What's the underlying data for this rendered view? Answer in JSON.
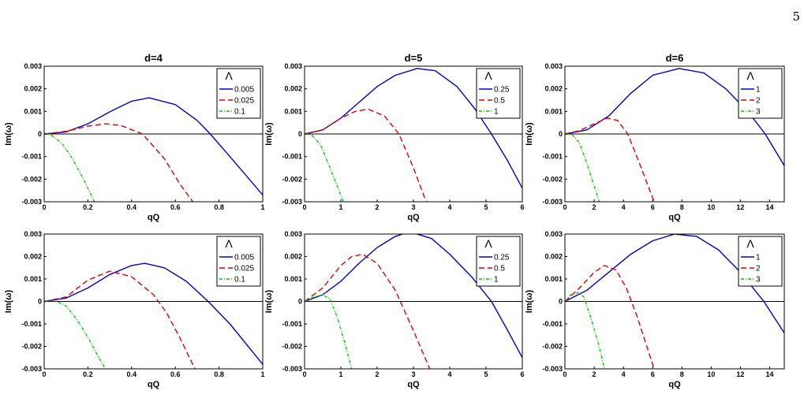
{
  "page_number": "5",
  "chart_data": [
    {
      "type": "line",
      "title": "d=4",
      "xlabel": "qQ",
      "ylabel": "Im(ω)",
      "xlim": [
        0,
        1
      ],
      "ylim": [
        -0.003,
        0.003
      ],
      "xticks": [
        "0",
        "0.2",
        "0.4",
        "0.6",
        "0.8",
        "1"
      ],
      "yticks": [
        "-0.003",
        "-0.002",
        "-0.001",
        "0",
        "0.001",
        "0.002",
        "0.003"
      ],
      "legend": {
        "title": "Λ",
        "placement": "top-right",
        "entries": [
          "0.005",
          "0.025",
          "0.1"
        ]
      },
      "series": [
        {
          "name": "0.005",
          "color": "#0000cc",
          "style": "solid",
          "x": [
            0,
            0.1,
            0.2,
            0.3,
            0.4,
            0.48,
            0.6,
            0.7,
            0.76,
            0.85,
            1.0
          ],
          "y": [
            0,
            9e-05,
            0.00045,
            0.00098,
            0.00145,
            0.0016,
            0.0013,
            0.0006,
            0,
            -0.001,
            -0.0027
          ]
        },
        {
          "name": "0.025",
          "color": "#dd0000",
          "style": "dashed",
          "x": [
            0,
            0.1,
            0.2,
            0.28,
            0.35,
            0.45,
            0.55,
            0.62,
            0.68
          ],
          "y": [
            0,
            0.00012,
            0.00035,
            0.00045,
            0.00038,
            0,
            -0.0011,
            -0.0022,
            -0.003
          ]
        },
        {
          "name": "0.1",
          "color": "#00cc00",
          "style": "dashdot",
          "x": [
            0,
            0.03,
            0.08,
            0.13,
            0.18,
            0.23
          ],
          "y": [
            0,
            -3e-05,
            -0.0004,
            -0.0011,
            -0.002,
            -0.003
          ]
        }
      ]
    },
    {
      "type": "line",
      "title": "d=5",
      "xlabel": "qQ",
      "ylabel": "Im(ω)",
      "xlim": [
        0,
        6
      ],
      "ylim": [
        -0.003,
        0.003
      ],
      "xticks": [
        "0",
        "1",
        "2",
        "3",
        "4",
        "5",
        "6"
      ],
      "yticks": [
        "-0.003",
        "-0.002",
        "-0.001",
        "0",
        "0.001",
        "0.002",
        "0.003"
      ],
      "legend": {
        "title": "Λ",
        "placement": "top-right",
        "entries": [
          "0.25",
          "0.5",
          "1"
        ]
      },
      "series": [
        {
          "name": "0.25",
          "color": "#0000cc",
          "style": "solid",
          "x": [
            0,
            0.5,
            1.0,
            1.5,
            2.0,
            2.5,
            3.1,
            3.6,
            4.2,
            4.7,
            5.15,
            5.6,
            6.0
          ],
          "y": [
            0,
            0.00018,
            0.0007,
            0.0014,
            0.0021,
            0.0026,
            0.0029,
            0.0028,
            0.0021,
            0.0011,
            0,
            -0.0012,
            -0.0024
          ]
        },
        {
          "name": "0.5",
          "color": "#dd0000",
          "style": "dashed",
          "x": [
            0,
            0.5,
            1.0,
            1.4,
            1.75,
            2.2,
            2.6,
            3.0,
            3.35
          ],
          "y": [
            0,
            0.00018,
            0.0007,
            0.001,
            0.0011,
            0.0008,
            0,
            -0.0015,
            -0.003
          ]
        },
        {
          "name": "1",
          "color": "#00cc00",
          "style": "dashdot",
          "x": [
            0,
            0.2,
            0.45,
            0.7,
            0.9,
            1.07
          ],
          "y": [
            0,
            -5e-05,
            -0.0005,
            -0.0015,
            -0.0023,
            -0.003
          ]
        }
      ]
    },
    {
      "type": "line",
      "title": "d=6",
      "xlabel": "qQ",
      "ylabel": "Im(ω)",
      "xlim": [
        0,
        15
      ],
      "ylim": [
        -0.003,
        0.003
      ],
      "xticks": [
        "0",
        "2",
        "4",
        "6",
        "8",
        "10",
        "12",
        "14"
      ],
      "yticks": [
        "-0.003",
        "-0.002",
        "-0.001",
        "0",
        "0.001",
        "0.002",
        "0.003"
      ],
      "legend": {
        "title": "Λ",
        "placement": "top-right",
        "entries": [
          "1",
          "2",
          "3"
        ]
      },
      "series": [
        {
          "name": "1",
          "color": "#0000cc",
          "style": "solid",
          "x": [
            0,
            1.5,
            3,
            4.5,
            6,
            7.8,
            9.5,
            11,
            12.5,
            13.7,
            15
          ],
          "y": [
            0,
            0.00018,
            0.0008,
            0.0018,
            0.0026,
            0.0029,
            0.0027,
            0.002,
            0.001,
            0,
            -0.0014
          ]
        },
        {
          "name": "2",
          "color": "#dd0000",
          "style": "dashed",
          "x": [
            0,
            1,
            2,
            2.9,
            3.6,
            4.3,
            5.1,
            6.1
          ],
          "y": [
            0,
            0.00015,
            0.00045,
            0.0007,
            0.0006,
            0,
            -0.0013,
            -0.003
          ]
        },
        {
          "name": "3",
          "color": "#00cc00",
          "style": "dashdot",
          "x": [
            0,
            0.5,
            1.0,
            1.5,
            2.0,
            2.35
          ],
          "y": [
            0,
            -3e-05,
            -0.0004,
            -0.0013,
            -0.0023,
            -0.003
          ]
        }
      ]
    },
    {
      "type": "line",
      "title": "",
      "xlabel": "qQ",
      "ylabel": "Im(ω)",
      "xlim": [
        0,
        1
      ],
      "ylim": [
        -0.003,
        0.003
      ],
      "xticks": [
        "0",
        "0.2",
        "0.4",
        "0.6",
        "0.8",
        "1"
      ],
      "yticks": [
        "-0.003",
        "-0.002",
        "-0.001",
        "0",
        "0.001",
        "0.002",
        "0.003"
      ],
      "legend": {
        "title": "Λ",
        "placement": "top-right",
        "entries": [
          "0.005",
          "0.025",
          "0.1"
        ]
      },
      "series": [
        {
          "name": "0.005",
          "color": "#0000cc",
          "style": "solid",
          "x": [
            0,
            0.1,
            0.2,
            0.3,
            0.4,
            0.46,
            0.55,
            0.65,
            0.75,
            0.85,
            1.0
          ],
          "y": [
            0,
            0.00015,
            0.0006,
            0.0012,
            0.0016,
            0.0017,
            0.0015,
            0.0009,
            0,
            -0.001,
            -0.0028
          ]
        },
        {
          "name": "0.025",
          "color": "#dd0000",
          "style": "dashed",
          "x": [
            0,
            0.1,
            0.2,
            0.3,
            0.4,
            0.5,
            0.56,
            0.62,
            0.69
          ],
          "y": [
            0,
            0.0002,
            0.00095,
            0.00135,
            0.0011,
            0.0003,
            -0.0005,
            -0.0016,
            -0.003
          ]
        },
        {
          "name": "0.1",
          "color": "#00cc00",
          "style": "dashdot",
          "x": [
            0,
            0.05,
            0.1,
            0.15,
            0.2,
            0.25,
            0.28
          ],
          "y": [
            0,
            3e-05,
            -0.0002,
            -0.0008,
            -0.0016,
            -0.0025,
            -0.003
          ]
        }
      ]
    },
    {
      "type": "line",
      "title": "",
      "xlabel": "qQ",
      "ylabel": "Im(ω)",
      "xlim": [
        0,
        6
      ],
      "ylim": [
        -0.003,
        0.003
      ],
      "xticks": [
        "0",
        "1",
        "2",
        "3",
        "4",
        "5",
        "6"
      ],
      "yticks": [
        "-0.003",
        "-0.002",
        "-0.001",
        "0",
        "0.001",
        "0.002",
        "0.003"
      ],
      "legend": {
        "title": "Λ",
        "placement": "top-right",
        "entries": [
          "0.25",
          "0.5",
          "1"
        ]
      },
      "series": [
        {
          "name": "0.25",
          "color": "#0000cc",
          "style": "solid",
          "x": [
            0,
            0.5,
            1.0,
            1.5,
            2.0,
            2.5,
            2.9,
            3.5,
            4.0,
            4.6,
            5.15,
            5.6,
            6.0
          ],
          "y": [
            0,
            0.0003,
            0.0009,
            0.0017,
            0.0024,
            0.0029,
            0.0031,
            0.0028,
            0.0021,
            0.0011,
            0,
            -0.0013,
            -0.0025
          ]
        },
        {
          "name": "0.5",
          "color": "#dd0000",
          "style": "dashed",
          "x": [
            0,
            0.5,
            1.0,
            1.3,
            1.6,
            2.0,
            2.5,
            3.0,
            3.45
          ],
          "y": [
            0,
            0.0006,
            0.0016,
            0.002,
            0.0021,
            0.0017,
            0.0005,
            -0.0013,
            -0.003
          ]
        },
        {
          "name": "1",
          "color": "#00cc00",
          "style": "dashdot",
          "x": [
            0,
            0.25,
            0.5,
            0.7,
            0.9,
            1.1,
            1.3
          ],
          "y": [
            0,
            0.0002,
            0.0003,
            0.0001,
            -0.0007,
            -0.0018,
            -0.003
          ]
        }
      ]
    },
    {
      "type": "line",
      "title": "",
      "xlabel": "qQ",
      "ylabel": "Im(ω)",
      "xlim": [
        0,
        15
      ],
      "ylim": [
        -0.003,
        0.003
      ],
      "xticks": [
        "0",
        "2",
        "4",
        "6",
        "8",
        "10",
        "12",
        "14"
      ],
      "yticks": [
        "-0.003",
        "-0.002",
        "-0.001",
        "0",
        "0.001",
        "0.002",
        "0.003"
      ],
      "legend": {
        "title": "Λ",
        "placement": "top-right",
        "entries": [
          "1",
          "2",
          "3"
        ]
      },
      "series": [
        {
          "name": "1",
          "color": "#0000cc",
          "style": "solid",
          "x": [
            0,
            1.5,
            3,
            4.5,
            6,
            7.5,
            9,
            10.5,
            12,
            13.6,
            15
          ],
          "y": [
            0,
            0.0005,
            0.0013,
            0.0021,
            0.0027,
            0.003,
            0.0029,
            0.0023,
            0.0013,
            0,
            -0.0014
          ]
        },
        {
          "name": "2",
          "color": "#dd0000",
          "style": "dashed",
          "x": [
            0,
            1,
            2,
            2.7,
            3.5,
            4.2,
            4.9,
            5.5,
            6.1
          ],
          "y": [
            0,
            0.0006,
            0.0013,
            0.0016,
            0.0014,
            0.0006,
            -0.0006,
            -0.0018,
            -0.003
          ]
        },
        {
          "name": "3",
          "color": "#00cc00",
          "style": "dashdot",
          "x": [
            0,
            0.4,
            0.9,
            1.3,
            1.8,
            2.3,
            2.7
          ],
          "y": [
            0,
            0.0003,
            0.0004,
            0.0002,
            -0.0008,
            -0.0019,
            -0.003
          ]
        }
      ]
    }
  ]
}
